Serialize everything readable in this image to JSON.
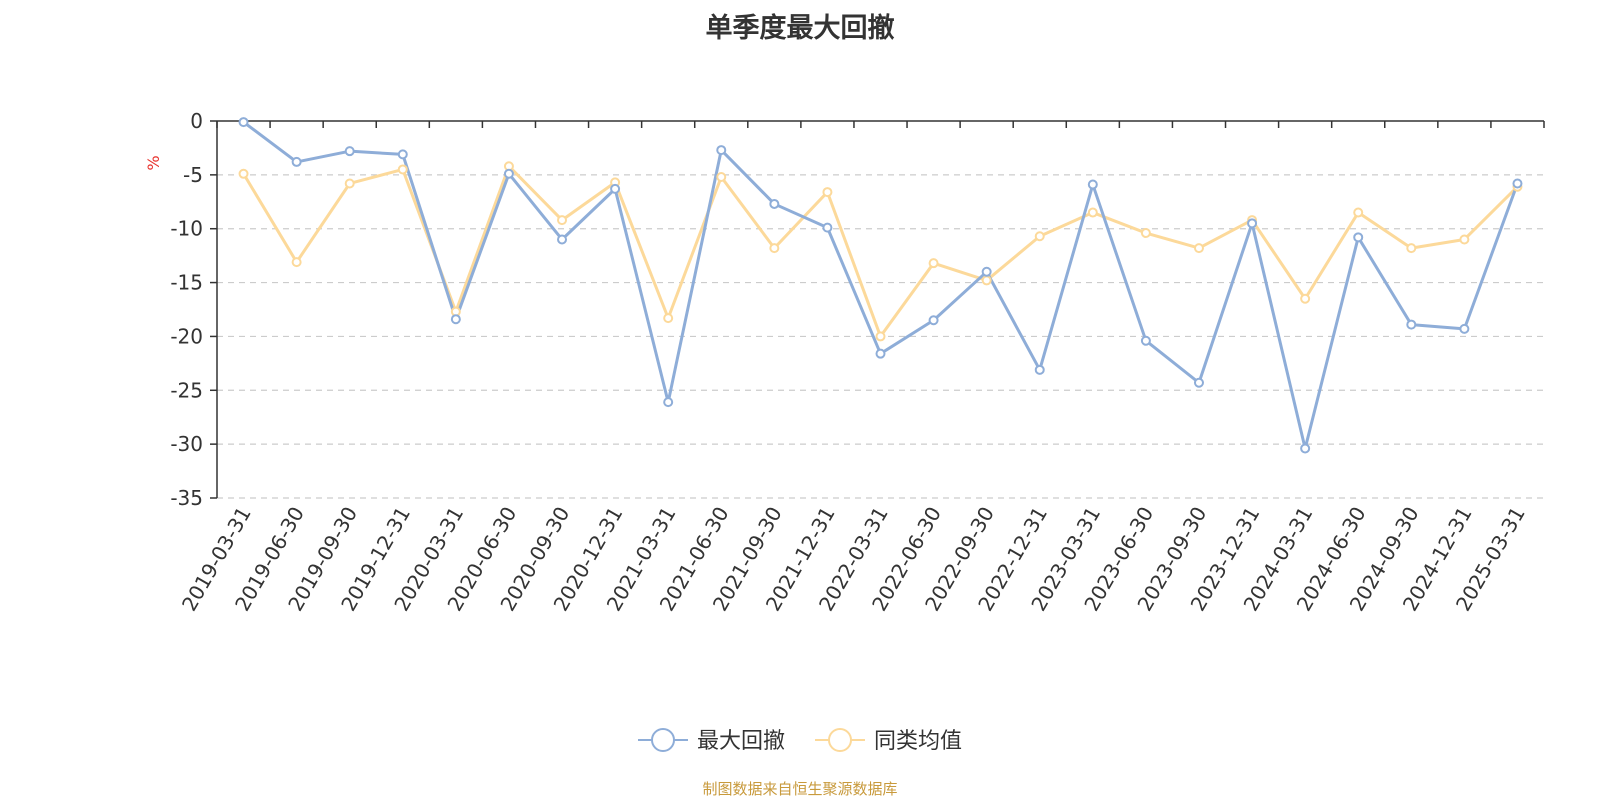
{
  "chart_data": {
    "type": "line",
    "title": "单季度最大回撤",
    "ylabel": "%",
    "ylim": [
      -35,
      0
    ],
    "yticks": [
      0,
      -5,
      -10,
      -15,
      -20,
      -25,
      -30,
      -35
    ],
    "grid": true,
    "legend_position": "bottom-center",
    "categories": [
      "2019-03-31",
      "2019-06-30",
      "2019-09-30",
      "2019-12-31",
      "2020-03-31",
      "2020-06-30",
      "2020-09-30",
      "2020-12-31",
      "2021-03-31",
      "2021-06-30",
      "2021-09-30",
      "2021-12-31",
      "2022-03-31",
      "2022-06-30",
      "2022-09-30",
      "2022-12-31",
      "2023-03-31",
      "2023-06-30",
      "2023-09-30",
      "2023-12-31",
      "2024-03-31",
      "2024-06-30",
      "2024-09-30",
      "2024-12-31",
      "2025-03-31"
    ],
    "series": [
      {
        "name": "最大回撤",
        "color": "#8eadd8",
        "values": [
          -0.1,
          -3.8,
          -2.8,
          -3.1,
          -18.4,
          -4.9,
          -11.0,
          -6.3,
          -26.1,
          -2.7,
          -7.7,
          -9.9,
          -21.6,
          -18.5,
          -14.0,
          -23.1,
          -5.9,
          -20.4,
          -24.3,
          -9.5,
          -30.4,
          -10.8,
          -18.9,
          -19.3,
          -5.8
        ]
      },
      {
        "name": "同类均值",
        "color": "#fcd99a",
        "values": [
          -4.9,
          -13.1,
          -5.8,
          -4.5,
          -17.7,
          -4.2,
          -9.2,
          -5.7,
          -18.3,
          -5.2,
          -11.8,
          -6.6,
          -20.0,
          -13.2,
          -14.8,
          -10.7,
          -8.5,
          -10.4,
          -11.8,
          -9.2,
          -16.5,
          -8.5,
          -11.8,
          -11.0,
          -6.1
        ]
      }
    ],
    "colors": {
      "grid": "#cccccc",
      "axis": "#333333",
      "ylabel": "#e8322d",
      "source": "#c89a3c"
    }
  },
  "source_text": "制图数据来自恒生聚源数据库"
}
